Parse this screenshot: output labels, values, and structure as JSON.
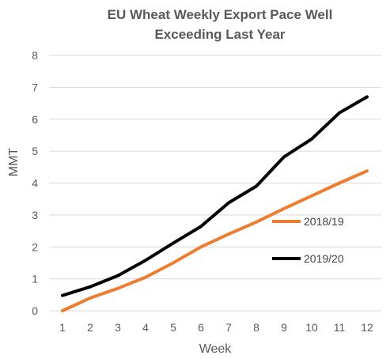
{
  "chart_data": {
    "type": "line",
    "title_lines": [
      "EU Wheat Weekly Export Pace Well",
      "Exceeding Last Year"
    ],
    "xlabel": "Week",
    "ylabel": "MMT",
    "x": [
      1,
      2,
      3,
      4,
      5,
      6,
      7,
      8,
      9,
      10,
      11,
      12
    ],
    "ylim": [
      0,
      8
    ],
    "yticks": [
      0,
      1,
      2,
      3,
      4,
      5,
      6,
      7,
      8
    ],
    "grid": "horizontal",
    "legend": "right, inside plot",
    "series": [
      {
        "name": "2018/19",
        "color": "#ED7D31",
        "values": [
          0.0,
          0.4,
          0.7,
          1.05,
          1.5,
          2.0,
          2.4,
          2.78,
          3.2,
          3.6,
          4.0,
          4.38
        ]
      },
      {
        "name": "2019/20",
        "color": "#000000",
        "values": [
          0.48,
          0.75,
          1.1,
          1.58,
          2.12,
          2.64,
          3.38,
          3.9,
          4.82,
          5.38,
          6.2,
          6.7
        ]
      }
    ]
  }
}
